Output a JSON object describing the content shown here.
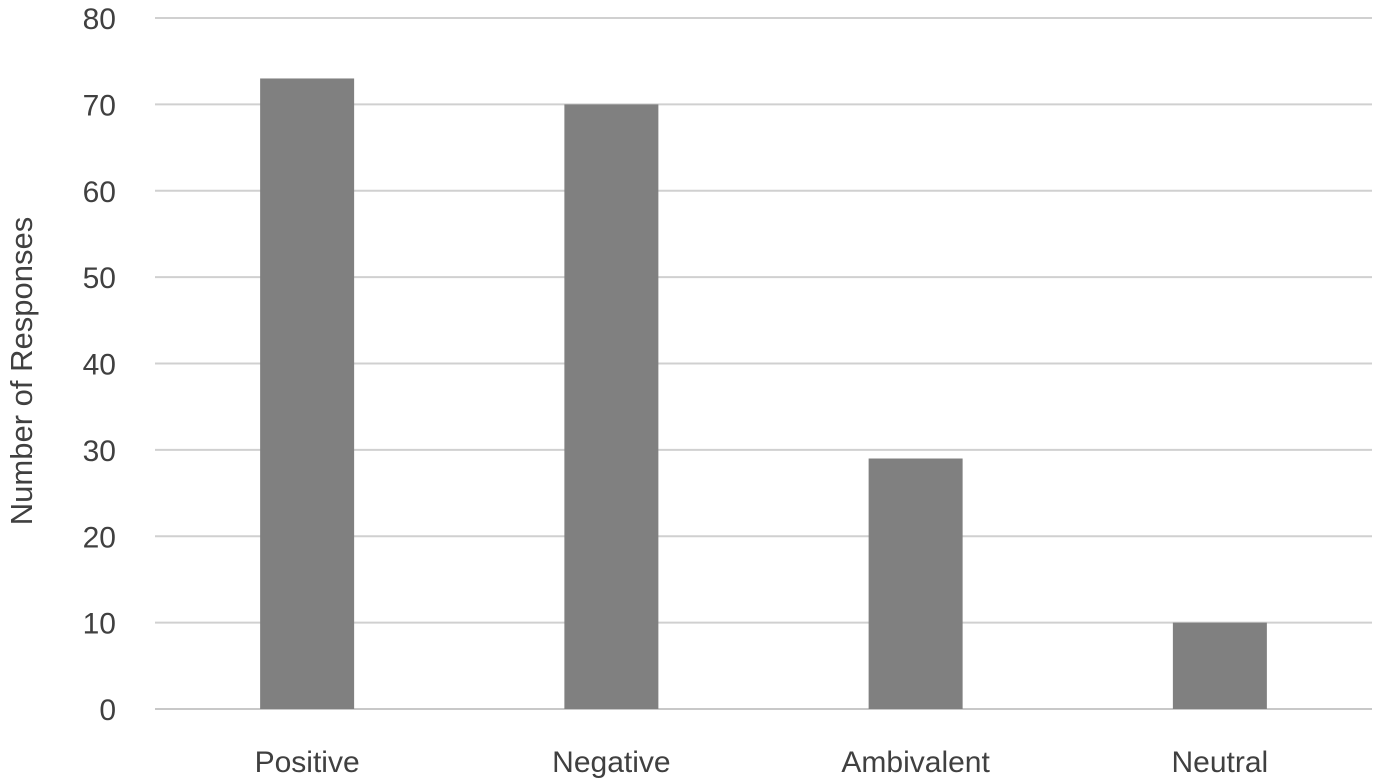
{
  "chart_data": {
    "type": "bar",
    "title": "",
    "xlabel": "",
    "ylabel": "Number of Responses",
    "categories": [
      "Positive",
      "Negative",
      "Ambivalent",
      "Neutral"
    ],
    "values": [
      73,
      70,
      29,
      10
    ],
    "ylim": [
      0,
      80
    ],
    "yticks": [
      0,
      10,
      20,
      30,
      40,
      50,
      60,
      70,
      80
    ],
    "grid": true,
    "legend": "none",
    "bar_color": "#808080",
    "grid_color": "#d0d0d0",
    "text_color": "#404040"
  }
}
